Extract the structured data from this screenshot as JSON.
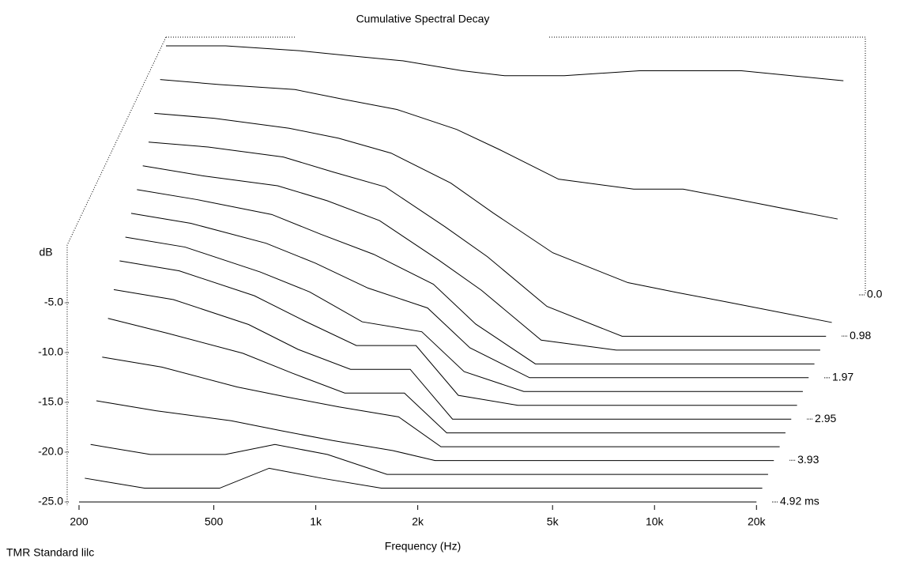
{
  "chart_data": {
    "type": "waterfall",
    "title": "Cumulative Spectral Decay",
    "x_label": "Frequency (Hz)",
    "y_label": "dB",
    "footer": "TMR Standard lilc",
    "log_x": true,
    "x": [
      200,
      300,
      500,
      700,
      1000,
      1500,
      2000,
      3000,
      5000,
      7000,
      10000,
      20000
    ],
    "xlim": [
      200,
      22000
    ],
    "xticks": [
      200,
      500,
      {
        "value": 1000,
        "label": "1k"
      },
      {
        "value": 2000,
        "label": "2k"
      },
      {
        "value": 5000,
        "label": "5k"
      },
      {
        "value": 10000,
        "label": "10k"
      },
      {
        "value": 20000,
        "label": "20k"
      }
    ],
    "ylim": [
      -25,
      0
    ],
    "yticks": [
      {
        "value": -25,
        "label": "-25.0"
      },
      {
        "value": -20,
        "label": "-20.0"
      },
      {
        "value": -15,
        "label": "-15.0"
      },
      {
        "value": -10,
        "label": "-10.0"
      },
      {
        "value": -5,
        "label": "-5.0"
      }
    ],
    "zlim": [
      0,
      4.92
    ],
    "zticks": [
      {
        "value": 0,
        "label": "0.0"
      },
      0.98,
      1.97,
      2.95,
      3.93,
      {
        "value": 4.92,
        "label": "4.92 ms"
      }
    ],
    "z": [
      0,
      0.328,
      0.656,
      0.984,
      1.312,
      1.64,
      1.968,
      2.296,
      2.624,
      2.952,
      3.28,
      3.608,
      3.936,
      4.264,
      4.592,
      4.92
    ],
    "color": "#000000",
    "series": [
      {
        "values": [
          0,
          0,
          -0.5,
          -1,
          -1.5,
          -2.5,
          -3,
          -3,
          -2.5,
          -2.5,
          -2.5,
          -3.5
        ]
      },
      {
        "values": [
          -2,
          -2.5,
          -3,
          -4,
          -5,
          -7,
          -9,
          -12,
          -13,
          -13,
          -14,
          -16
        ]
      },
      {
        "values": [
          -4,
          -4.5,
          -5.5,
          -6.5,
          -8,
          -11,
          -14,
          -18,
          -21,
          -22,
          -23,
          -25
        ]
      },
      {
        "values": [
          -5.5,
          -6,
          -7,
          -8.5,
          -10,
          -14,
          -17,
          -22,
          -25,
          -25,
          -25,
          -25
        ]
      },
      {
        "values": [
          -6.5,
          -7.5,
          -8.5,
          -10,
          -12,
          -16,
          -19,
          -24,
          -25,
          -25,
          -25,
          -25
        ]
      },
      {
        "values": [
          -7.5,
          -8.5,
          -10,
          -12,
          -14,
          -17,
          -21,
          -25,
          -25,
          -25,
          -25,
          -25
        ]
      },
      {
        "values": [
          -8.5,
          -9.5,
          -11.5,
          -13.5,
          -16,
          -18,
          -22,
          -25,
          -25,
          -25,
          -25,
          -25
        ]
      },
      {
        "values": [
          -9.5,
          -10.5,
          -13,
          -15,
          -18,
          -19,
          -23,
          -25,
          -25,
          -25,
          -25,
          -25
        ]
      },
      {
        "values": [
          -10.5,
          -11.5,
          -14,
          -16.5,
          -19,
          -19,
          -24,
          -25,
          -25,
          -25,
          -25,
          -25
        ]
      },
      {
        "values": [
          -12,
          -13,
          -15.5,
          -18,
          -20,
          -20,
          -25,
          -25,
          -25,
          -25,
          -25,
          -25
        ]
      },
      {
        "values": [
          -13.5,
          -15,
          -17,
          -19,
          -21,
          -21,
          -25,
          -25,
          -25,
          -25,
          -25,
          -25
        ]
      },
      {
        "values": [
          -16,
          -17,
          -19,
          -20,
          -21,
          -22,
          -25,
          -25,
          -25,
          -25,
          -25,
          -25
        ]
      },
      {
        "values": [
          -19,
          -20,
          -21,
          -22,
          -23,
          -24,
          -25,
          -25,
          -25,
          -25,
          -25,
          -25
        ]
      },
      {
        "values": [
          -22,
          -23,
          -23,
          -22,
          -23,
          -25,
          -25,
          -25,
          -25,
          -25,
          -25,
          -25
        ]
      },
      {
        "values": [
          -24,
          -25,
          -25,
          -23,
          -24,
          -25,
          -25,
          -25,
          -25,
          -25,
          -25,
          -25
        ]
      },
      {
        "values": [
          -25,
          -25,
          -25,
          -25,
          -25,
          -25,
          -25,
          -25,
          -25,
          -25,
          -25,
          -25
        ]
      }
    ]
  }
}
